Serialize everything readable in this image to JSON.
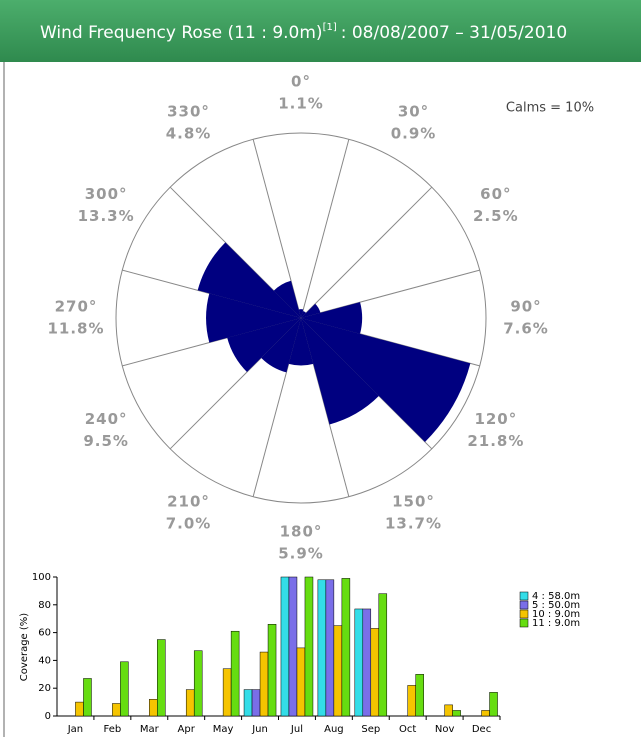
{
  "chart_data": [
    {
      "type": "rose",
      "title": "Wind Frequency Rose (11 : 9.0m)",
      "title_sup": "[1]",
      "subtitle": ": 08/08/2007 – 31/05/2010",
      "annotation": "Calms = 10%",
      "categories": [
        "0°",
        "30°",
        "60°",
        "90°",
        "120°",
        "150°",
        "180°",
        "210°",
        "240°",
        "270°",
        "300°",
        "330°"
      ],
      "directions": [
        0,
        30,
        60,
        90,
        120,
        150,
        180,
        210,
        240,
        270,
        300,
        330
      ],
      "values": [
        1.1,
        0.9,
        2.5,
        7.6,
        21.8,
        13.7,
        5.9,
        7.0,
        9.5,
        11.8,
        13.3,
        4.8
      ],
      "value_labels": [
        "1.1%",
        "0.9%",
        "2.5%",
        "7.6%",
        "21.8%",
        "13.7%",
        "5.9%",
        "7.0%",
        "9.5%",
        "11.8%",
        "13.3%",
        "4.8%"
      ],
      "color": "#000080",
      "rlim": [
        0,
        23
      ]
    },
    {
      "type": "bar",
      "ylabel": "Coverage (%)",
      "categories": [
        "Jan",
        "Feb",
        "Mar",
        "Apr",
        "May",
        "Jun",
        "Jul",
        "Aug",
        "Sep",
        "Oct",
        "Nov",
        "Dec"
      ],
      "series": [
        {
          "name": "4 : 58.0m",
          "color": "#33dde8",
          "values": [
            0,
            0,
            0,
            0,
            0,
            19,
            100,
            98,
            77,
            0,
            0,
            0
          ]
        },
        {
          "name": "5 : 50.0m",
          "color": "#7a6ee8",
          "values": [
            0,
            0,
            0,
            0,
            0,
            19,
            100,
            98,
            77,
            0,
            0,
            0
          ]
        },
        {
          "name": "10 : 9.0m",
          "color": "#f5c400",
          "values": [
            10,
            9,
            12,
            19,
            34,
            46,
            49,
            65,
            63,
            22,
            8,
            4
          ]
        },
        {
          "name": "11 : 9.0m",
          "color": "#66dd11",
          "values": [
            27,
            39,
            55,
            47,
            61,
            66,
            100,
            99,
            88,
            30,
            4,
            17
          ]
        }
      ],
      "ylim": [
        0,
        100
      ],
      "yticks": [
        0,
        20,
        40,
        60,
        80,
        100
      ]
    }
  ]
}
